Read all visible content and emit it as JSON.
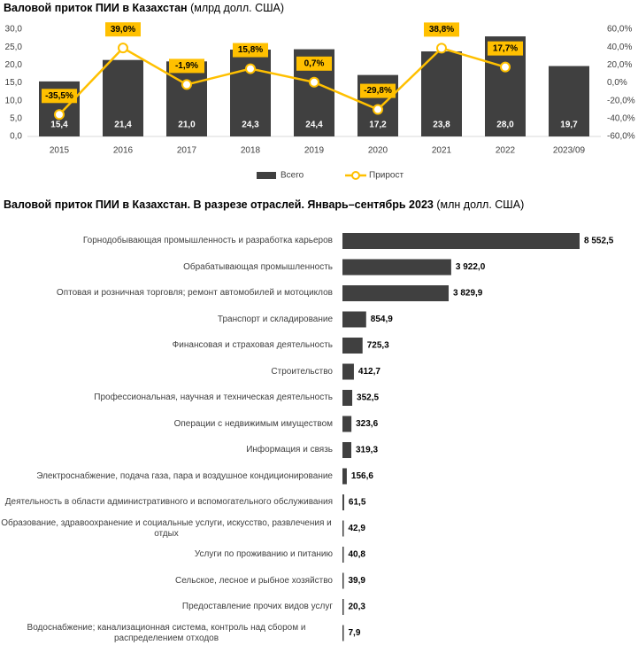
{
  "chart_data": [
    {
      "type": "bar-line",
      "title": "Валовой приток ПИИ в Казахстан",
      "subtitle": "(млрд долл. США)",
      "categories": [
        "2015",
        "2016",
        "2017",
        "2018",
        "2019",
        "2020",
        "2021",
        "2022",
        "2023/09"
      ],
      "series": [
        {
          "name": "Всего",
          "type": "bar",
          "color": "#404040",
          "values": [
            15.4,
            21.4,
            21.0,
            24.3,
            24.4,
            17.2,
            23.8,
            28.0,
            19.7
          ],
          "value_labels": [
            "15,4",
            "21,4",
            "21,0",
            "24,3",
            "24,4",
            "17,2",
            "23,8",
            "28,0",
            "19,7"
          ]
        },
        {
          "name": "Прирост",
          "type": "line",
          "axis": "y2",
          "color": "#ffc000",
          "values": [
            -35.5,
            39.0,
            -1.9,
            15.8,
            0.7,
            -29.8,
            38.8,
            17.7,
            null
          ],
          "value_labels": [
            "-35,5%",
            "39,0%",
            "-1,9%",
            "15,8%",
            "0,7%",
            "-29,8%",
            "38,8%",
            "17,7%",
            null
          ]
        }
      ],
      "ylim": [
        0,
        30
      ],
      "yticks": [
        {
          "value": 0,
          "label": "0,0"
        },
        {
          "value": 5,
          "label": "5,0"
        },
        {
          "value": 10,
          "label": "10,0"
        },
        {
          "value": 15,
          "label": "15,0"
        },
        {
          "value": 20,
          "label": "20,0"
        },
        {
          "value": 25,
          "label": "25,0"
        },
        {
          "value": 30,
          "label": "30,0"
        }
      ],
      "y2lim": [
        -60,
        60
      ],
      "y2ticks": [
        {
          "value": -60,
          "label": "-60,0%"
        },
        {
          "value": -40,
          "label": "-40,0%"
        },
        {
          "value": -20,
          "label": "-20,0%"
        },
        {
          "value": 0,
          "label": "0,0%"
        },
        {
          "value": 20,
          "label": "20,0%"
        },
        {
          "value": 40,
          "label": "40,0%"
        },
        {
          "value": 60,
          "label": "60,0%"
        }
      ],
      "legend": "bottom"
    },
    {
      "type": "hbar",
      "title": "Валовой приток ПИИ в Казахстан. В разрезе отраслей. Январь–сентябрь 2023",
      "subtitle": "(млн долл. США)",
      "color": "#404040",
      "categories": [
        "Горнодобывающая промышленность и разработка карьеров",
        "Обрабатывающая промышленность",
        "Оптовая и розничная торговля; ремонт автомобилей и мотоциклов",
        "Транспорт и складирование",
        "Финансовая и страховая деятельность",
        "Строительство",
        "Профессиональная, научная и техническая деятельность",
        "Операции с недвижимым имуществом",
        "Информация и связь",
        "Электроснабжение, подача газа, пара и воздушное кондиционирование",
        "Деятельность в области административного и вспомогательного обслуживания",
        "Образование, здравоохранение и социальные услуги, искусство, развлечения и отдых",
        "Услуги по проживанию и питанию",
        "Сельское, лесное и рыбное хозяйство",
        "Предоставление прочих видов услуг",
        "Водоснабжение; канализационная система, контроль над сбором и распределением отходов"
      ],
      "values": [
        8552.5,
        3922.0,
        3829.9,
        854.9,
        725.3,
        412.7,
        352.5,
        323.6,
        319.3,
        156.6,
        61.5,
        42.9,
        40.8,
        39.9,
        20.3,
        7.9
      ],
      "value_labels": [
        "8 552,5",
        "3 922,0",
        "3 829,9",
        "854,9",
        "725,3",
        "412,7",
        "352,5",
        "323,6",
        "319,3",
        "156,6",
        "61,5",
        "42,9",
        "40,8",
        "39,9",
        "20,3",
        "7,9"
      ]
    }
  ]
}
